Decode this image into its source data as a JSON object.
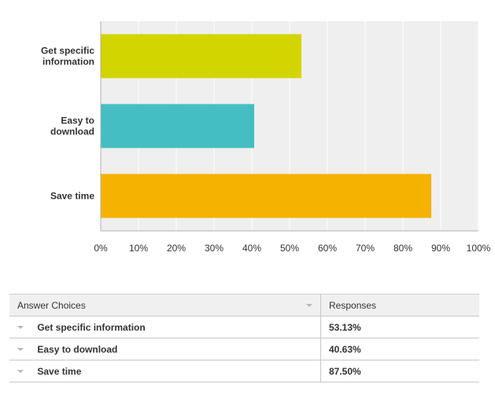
{
  "chart_data": {
    "type": "bar",
    "orientation": "horizontal",
    "categories": [
      "Get specific information",
      "Easy to download",
      "Save time"
    ],
    "category_lines": [
      [
        "Get specific",
        "information"
      ],
      [
        "Easy to",
        "download"
      ],
      [
        "Save time"
      ]
    ],
    "values": [
      53.13,
      40.63,
      87.5
    ],
    "colors": [
      "#d3d500",
      "#44bec3",
      "#f6b200"
    ],
    "xlim": [
      0,
      100
    ],
    "xticks": [
      "0%",
      "10%",
      "20%",
      "30%",
      "40%",
      "50%",
      "60%",
      "70%",
      "80%",
      "90%",
      "100%"
    ],
    "grid": true,
    "title": "",
    "xlabel": "",
    "ylabel": ""
  },
  "table": {
    "header_choice": "Answer Choices",
    "header_responses": "Responses",
    "rows": [
      {
        "choice": "Get specific information",
        "response": "53.13%"
      },
      {
        "choice": "Easy to download",
        "response": "40.63%"
      },
      {
        "choice": "Save time",
        "response": "87.50%"
      }
    ]
  }
}
